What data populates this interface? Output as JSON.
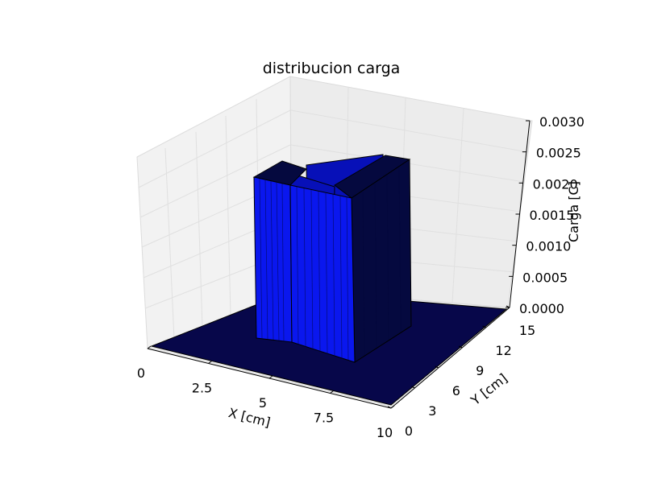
{
  "chart_data": {
    "type": "surface3d",
    "title": "distribucion carga",
    "xlabel": "X [cm]",
    "ylabel": "Y [cm]",
    "zlabel": "Carga [C]",
    "xlim": [
      0,
      10
    ],
    "ylim": [
      0,
      15
    ],
    "zlim": [
      0,
      0.003
    ],
    "xticks": [
      "0",
      "2.5",
      "5",
      "7.5",
      "10"
    ],
    "yticks": [
      "0",
      "3",
      "6",
      "9",
      "12",
      "15"
    ],
    "zticks": [
      "0.0000",
      "0.0005",
      "0.0010",
      "0.0015",
      "0.0020",
      "0.0025",
      "0.0030"
    ],
    "grid": true,
    "colors": {
      "surface_front": "#0a17ee",
      "surface_side": "#0710b8",
      "surface_dark": "#05093f",
      "floor": "#07074a",
      "edge": "#000000",
      "pane": "#f2f2f2",
      "pane_grid": "#e2e2e2"
    },
    "regions": [
      {
        "name": "left-column",
        "x": [
          3.3,
          4.3
        ],
        "y": [
          3.0,
          9.0
        ],
        "z": 0.0024
      },
      {
        "name": "right-column",
        "x": [
          3.3,
          7.0
        ],
        "y": [
          9.0,
          12.0
        ],
        "z": 0.0026
      },
      {
        "name": "back-wall",
        "x": [
          4.3,
          7.0
        ],
        "y": [
          3.0,
          9.0
        ],
        "z": 0.0022
      }
    ]
  }
}
